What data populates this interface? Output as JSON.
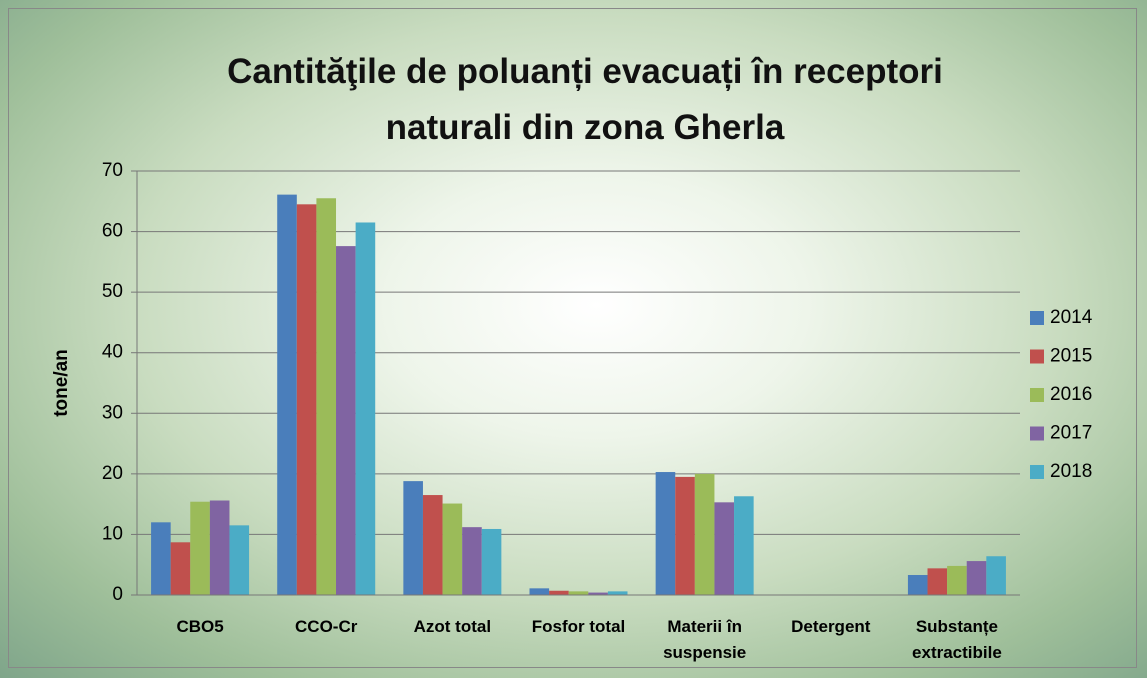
{
  "chart_data": {
    "type": "bar",
    "title": "Cantităţile de poluanți evacuați în receptori naturali din zona Gherla",
    "y_label": "tone/an",
    "categories": [
      "CBO5",
      "CCO-Cr",
      "Azot total",
      "Fosfor total",
      "Materii în suspensie",
      "Detergent",
      "Substanțe extractibile"
    ],
    "series": [
      {
        "name": "2014",
        "color": "#4a7ebb",
        "values": [
          12.0,
          66.1,
          18.8,
          1.1,
          20.3,
          0,
          3.3
        ]
      },
      {
        "name": "2015",
        "color": "#c0504d",
        "values": [
          8.7,
          64.5,
          16.5,
          0.7,
          19.5,
          0,
          4.4
        ]
      },
      {
        "name": "2016",
        "color": "#9bbb59",
        "values": [
          15.4,
          65.5,
          15.1,
          0.6,
          20.0,
          0,
          4.8
        ]
      },
      {
        "name": "2017",
        "color": "#8064a2",
        "values": [
          15.6,
          57.6,
          11.2,
          0.4,
          15.3,
          0,
          5.6
        ]
      },
      {
        "name": "2018",
        "color": "#4bacc6",
        "values": [
          11.5,
          61.5,
          10.9,
          0.6,
          16.3,
          0,
          6.4
        ]
      }
    ],
    "ylim": [
      0,
      70
    ],
    "yticks": [
      0,
      10,
      20,
      30,
      40,
      50,
      60,
      70
    ],
    "grid": true,
    "legend": "right"
  }
}
